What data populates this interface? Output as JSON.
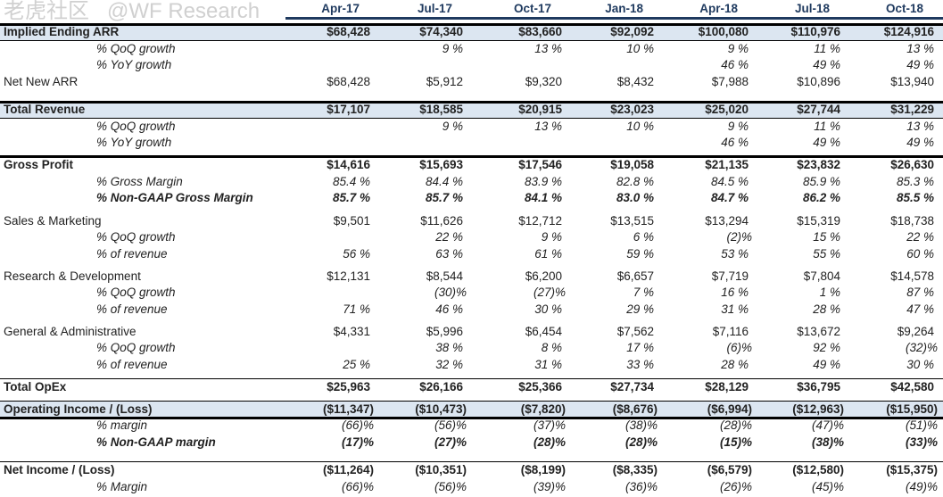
{
  "columns": [
    "Apr-17",
    "Jul-17",
    "Oct-17",
    "Jan-18",
    "Apr-18",
    "Jul-18",
    "Oct-18"
  ],
  "rows": [
    {
      "label": "Implied Ending ARR",
      "style": "bold",
      "values": [
        "$68,428",
        "$74,340",
        "$83,660",
        "$92,092",
        "$100,080",
        "$110,976",
        "$124,916"
      ]
    },
    {
      "label": "% QoQ growth",
      "style": "sub",
      "values": [
        "",
        "9 %",
        "13 %",
        "10 %",
        "9 %",
        "11 %",
        "13 %"
      ]
    },
    {
      "label": "% YoY growth",
      "style": "sub",
      "values": [
        "",
        "",
        "",
        "",
        "46 %",
        "49 %",
        "49 %"
      ]
    },
    {
      "label": "Net New ARR",
      "style": "normal",
      "values": [
        "$68,428",
        "$5,912",
        "$9,320",
        "$8,432",
        "$7,988",
        "$10,896",
        "$13,940"
      ]
    },
    {
      "label": "Total Revenue",
      "style": "bold",
      "values": [
        "$17,107",
        "$18,585",
        "$20,915",
        "$23,023",
        "$25,020",
        "$27,744",
        "$31,229"
      ]
    },
    {
      "label": "% QoQ growth",
      "style": "sub",
      "values": [
        "",
        "9 %",
        "13 %",
        "10 %",
        "9 %",
        "11 %",
        "13 %"
      ]
    },
    {
      "label": "% YoY growth",
      "style": "sub",
      "values": [
        "",
        "",
        "",
        "",
        "46 %",
        "49 %",
        "49 %"
      ]
    },
    {
      "label": "Gross Profit",
      "style": "bold",
      "values": [
        "$14,616",
        "$15,693",
        "$17,546",
        "$19,058",
        "$21,135",
        "$23,832",
        "$26,630"
      ]
    },
    {
      "label": "% Gross Margin",
      "style": "sub",
      "values": [
        "85.4 %",
        "84.4 %",
        "83.9 %",
        "82.8 %",
        "84.5 %",
        "85.9 %",
        "85.3 %"
      ]
    },
    {
      "label": "% Non-GAAP Gross Margin",
      "style": "sub bold",
      "values": [
        "85.7 %",
        "85.7 %",
        "84.1 %",
        "83.0 %",
        "84.7 %",
        "86.2 %",
        "85.5 %"
      ]
    },
    {
      "label": "Sales & Marketing",
      "style": "normal",
      "values": [
        "$9,501",
        "$11,626",
        "$12,712",
        "$13,515",
        "$13,294",
        "$15,319",
        "$18,738"
      ]
    },
    {
      "label": "% QoQ growth",
      "style": "sub",
      "values": [
        "",
        "22 %",
        "9 %",
        "6 %",
        "(2)%",
        "15 %",
        "22 %"
      ]
    },
    {
      "label": "% of revenue",
      "style": "sub",
      "values": [
        "56 %",
        "63 %",
        "61 %",
        "59 %",
        "53 %",
        "55 %",
        "60 %"
      ]
    },
    {
      "label": "Research & Development",
      "style": "normal",
      "values": [
        "$12,131",
        "$8,544",
        "$6,200",
        "$6,657",
        "$7,719",
        "$7,804",
        "$14,578"
      ]
    },
    {
      "label": "% QoQ growth",
      "style": "sub",
      "values": [
        "",
        "(30)%",
        "(27)%",
        "7 %",
        "16 %",
        "1 %",
        "87 %"
      ]
    },
    {
      "label": "% of revenue",
      "style": "sub",
      "values": [
        "71 %",
        "46 %",
        "30 %",
        "29 %",
        "31 %",
        "28 %",
        "47 %"
      ]
    },
    {
      "label": "General & Administrative",
      "style": "normal",
      "values": [
        "$4,331",
        "$5,996",
        "$6,454",
        "$7,562",
        "$7,116",
        "$13,672",
        "$9,264"
      ]
    },
    {
      "label": "% QoQ growth",
      "style": "sub",
      "values": [
        "",
        "38 %",
        "8 %",
        "17 %",
        "(6)%",
        "92 %",
        "(32)%"
      ]
    },
    {
      "label": "% of revenue",
      "style": "sub",
      "values": [
        "25 %",
        "32 %",
        "31 %",
        "33 %",
        "28 %",
        "49 %",
        "30 %"
      ]
    },
    {
      "label": "Total OpEx",
      "style": "bold",
      "values": [
        "$25,963",
        "$26,166",
        "$25,366",
        "$27,734",
        "$28,129",
        "$36,795",
        "$42,580"
      ]
    },
    {
      "label": "Operating Income / (Loss)",
      "style": "bold",
      "values": [
        "($11,347)",
        "($10,473)",
        "($7,820)",
        "($8,676)",
        "($6,994)",
        "($12,963)",
        "($15,950)"
      ]
    },
    {
      "label": "% margin",
      "style": "sub",
      "values": [
        "(66)%",
        "(56)%",
        "(37)%",
        "(38)%",
        "(28)%",
        "(47)%",
        "(51)%"
      ]
    },
    {
      "label": "% Non-GAAP margin",
      "style": "sub bold",
      "values": [
        "(17)%",
        "(27)%",
        "(28)%",
        "(28)%",
        "(15)%",
        "(38)%",
        "(33)%"
      ]
    },
    {
      "label": "Net Income / (Loss)",
      "style": "bold",
      "values": [
        "($11,264)",
        "($10,351)",
        "($8,199)",
        "($8,335)",
        "($6,579)",
        "($12,580)",
        "($15,375)"
      ]
    },
    {
      "label": "% Margin",
      "style": "sub",
      "values": [
        "(66)%",
        "(56)%",
        "(39)%",
        "(36)%",
        "(26)%",
        "(45)%",
        "(49)%"
      ]
    }
  ],
  "watermark": {
    "line1": "老虎社区",
    "line2": "@WF Research"
  },
  "colors": {
    "header_text": "#1f3a5f",
    "band": "#dce6f1"
  }
}
